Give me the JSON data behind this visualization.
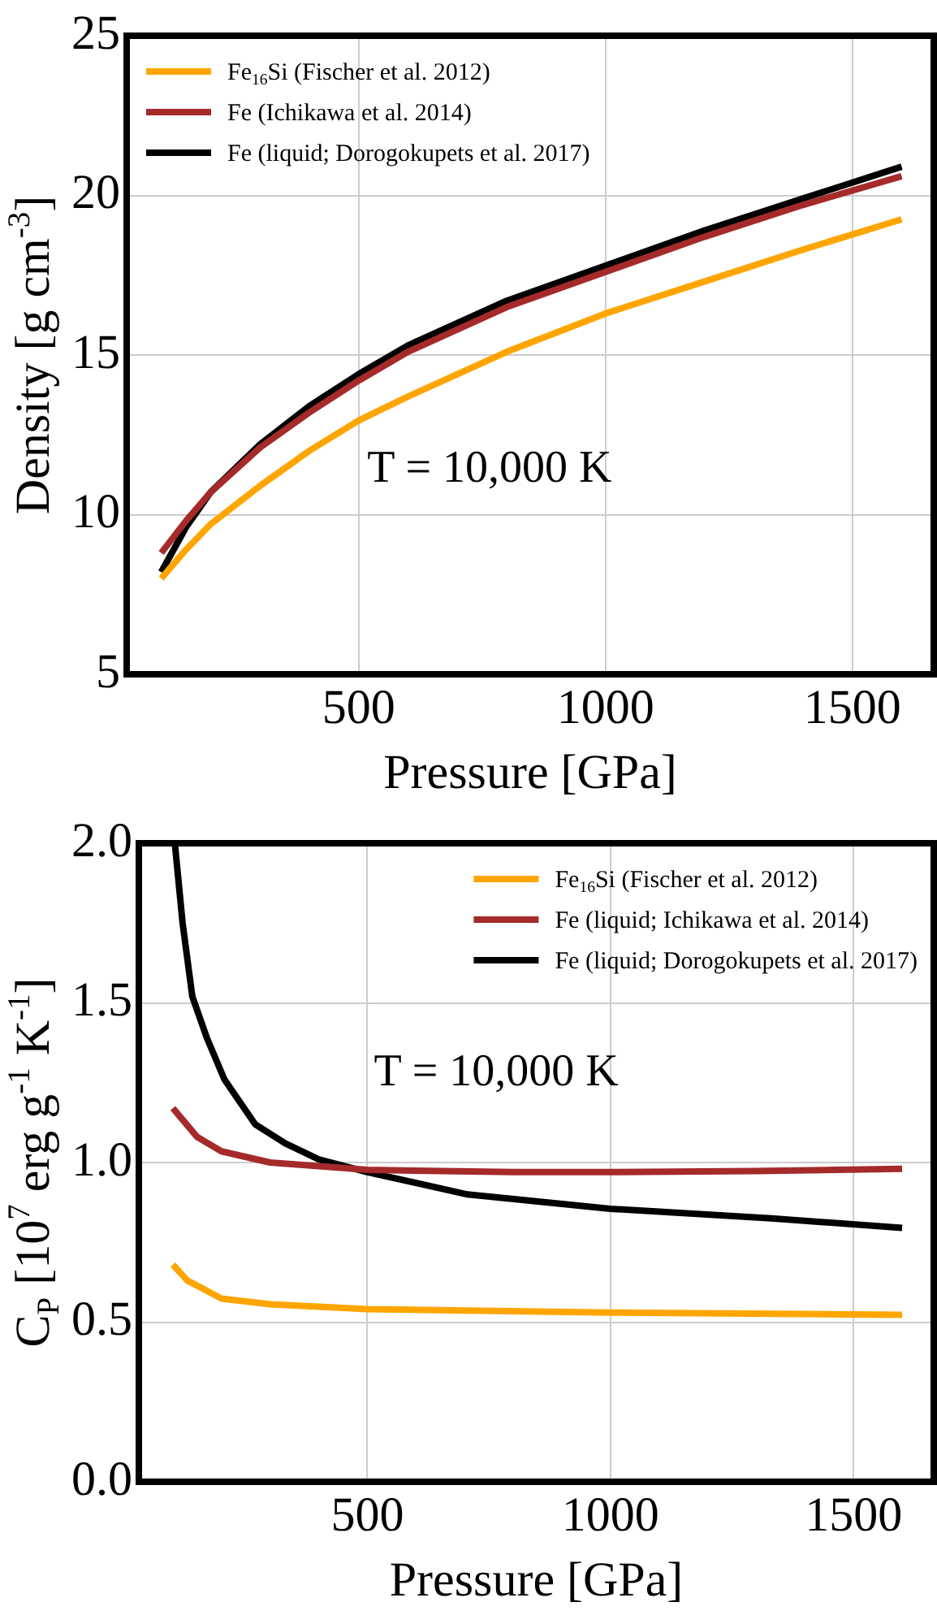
{
  "chart_data": [
    {
      "type": "line",
      "xlabel": "Pressure [GPa]",
      "ylabel": "Density [g cm$^{-3}$]",
      "xlim": [
        30,
        1665
      ],
      "ylim": [
        5,
        25
      ],
      "xticks": [
        500,
        1000,
        1500
      ],
      "yticks": [
        5,
        10,
        15,
        20,
        25
      ],
      "grid": true,
      "legend": "top left",
      "marker": "none",
      "line_style": "solid",
      "annotations": [
        "T = 10,000 K"
      ],
      "series": [
        {
          "name": "Fe$_{16}$Si (Fischer et al. 2012)",
          "color": "#ffa500",
          "x": [
            100,
            150,
            200,
            300,
            400,
            500,
            600,
            800,
            1000,
            1200,
            1400,
            1600
          ],
          "values": [
            8.0,
            8.9,
            9.7,
            10.9,
            12.0,
            12.95,
            13.7,
            15.1,
            16.3,
            17.3,
            18.3,
            19.25
          ]
        },
        {
          "name": "Fe (Ichikawa et al. 2014)",
          "color": "#a52a2a",
          "x": [
            100,
            150,
            200,
            300,
            400,
            500,
            600,
            800,
            1000,
            1200,
            1400,
            1600
          ],
          "values": [
            8.8,
            9.8,
            10.7,
            12.1,
            13.2,
            14.2,
            15.1,
            16.5,
            17.6,
            18.7,
            19.7,
            20.6
          ]
        },
        {
          "name": "Fe (liquid; Dorogokupets et al. 2017)",
          "color": "#000000",
          "x": [
            100,
            150,
            200,
            300,
            400,
            500,
            600,
            800,
            1000,
            1200,
            1400,
            1600
          ],
          "values": [
            8.2,
            9.6,
            10.7,
            12.2,
            13.4,
            14.4,
            15.3,
            16.7,
            17.8,
            18.9,
            19.9,
            20.9
          ]
        }
      ]
    },
    {
      "type": "line",
      "xlabel": "Pressure [GPa]",
      "ylabel": "C$_{P}$ [10$^{7}$ erg g$^{-1}$ K$^{-1}$]",
      "xlim": [
        30,
        1665
      ],
      "ylim": [
        0,
        2
      ],
      "xticks": [
        500,
        1000,
        1500
      ],
      "yticks": [
        {
          "value": 0,
          "label": "0.0"
        },
        0.5,
        {
          "value": 1,
          "label": "1.0"
        },
        1.5,
        {
          "value": 2,
          "label": "2.0"
        }
      ],
      "grid": true,
      "legend": "top right",
      "marker": "none",
      "line_style": "solid",
      "annotations": [
        "T = 10,000 K"
      ],
      "series": [
        {
          "name": "Fe$_{16}$Si (Fischer et al. 2012)",
          "color": "#ffa500",
          "x": [
            100,
            130,
            200,
            300,
            500,
            1000,
            1600
          ],
          "values": [
            0.68,
            0.63,
            0.574,
            0.556,
            0.541,
            0.53,
            0.523
          ]
        },
        {
          "name": "Fe (liquid; Ichikawa et al. 2014)",
          "color": "#a52a2a",
          "x": [
            100,
            150,
            200,
            300,
            500,
            800,
            1000,
            1300,
            1600
          ],
          "values": [
            1.17,
            1.08,
            1.035,
            1.0,
            0.977,
            0.97,
            0.97,
            0.973,
            0.98
          ]
        },
        {
          "name": "Fe (liquid; Dorogokupets et al. 2017)",
          "color": "#000000",
          "x": [
            104,
            120,
            140,
            170,
            206,
            269,
            331,
            400,
            500,
            706,
            1000,
            1331,
            1600
          ],
          "values": [
            2.0,
            1.75,
            1.52,
            1.39,
            1.26,
            1.12,
            1.06,
            1.01,
            0.97,
            0.9,
            0.855,
            0.825,
            0.795
          ]
        }
      ]
    }
  ]
}
